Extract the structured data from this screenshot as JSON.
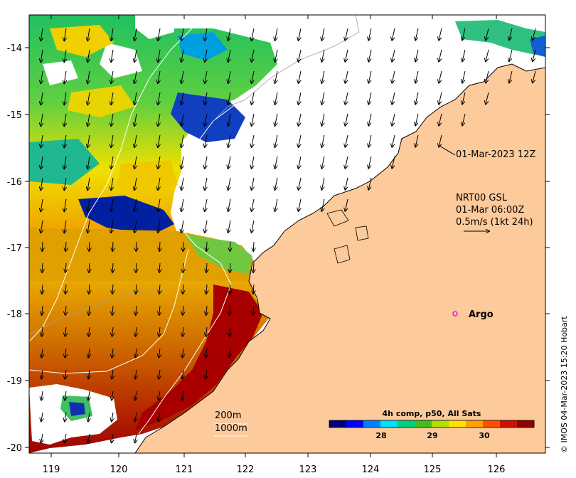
{
  "map": {
    "x_ticks": [
      "119",
      "120",
      "121",
      "122",
      "123",
      "124",
      "125",
      "126"
    ],
    "y_ticks": [
      "-14",
      "-15",
      "-16",
      "-17",
      "-18",
      "-19",
      "-20"
    ],
    "colors": {
      "land": "#fdca9b",
      "border": "#000000",
      "contour": "#ffffff",
      "arrow": "#000000",
      "argo": "#ff00ff"
    }
  },
  "annotations": {
    "timestamp": "01-Mar-2023 12Z",
    "current_source": "NRT00 GSL",
    "current_time": "01-Mar 06:00Z",
    "scale_text": "0.5m/s (1kt 24h)",
    "argo_label": "Argo",
    "contour_200": "200m",
    "contour_1000": "1000m"
  },
  "colorbar": {
    "title": "4h comp, p50, All Sats",
    "ticks": [
      "28",
      "29",
      "30"
    ],
    "colors": [
      "#00007f",
      "#0000ff",
      "#0080ff",
      "#00e0ff",
      "#00d080",
      "#40c020",
      "#b0e000",
      "#ffe000",
      "#ffa000",
      "#ff5000",
      "#d01000",
      "#900000"
    ]
  },
  "credit": "© IMOS 04-Mar-2023 15:20 Hobart"
}
